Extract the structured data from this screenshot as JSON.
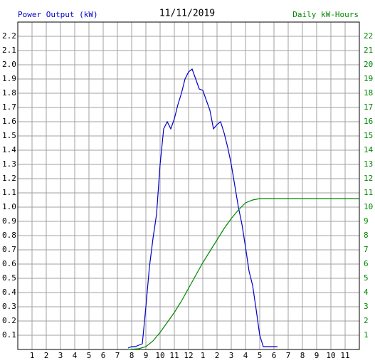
{
  "chart_data": {
    "type": "line",
    "title": "11/11/2019",
    "ylabel": "Power Output (kW)",
    "y2label": "Daily kW-Hours",
    "grid": true,
    "xlim": [
      0,
      24
    ],
    "xticks": [
      1,
      2,
      3,
      4,
      5,
      6,
      7,
      8,
      9,
      10,
      11,
      12,
      {
        "value": 13,
        "label": "1"
      },
      {
        "value": 14,
        "label": "2"
      },
      {
        "value": 15,
        "label": "3"
      },
      {
        "value": 16,
        "label": "4"
      },
      {
        "value": 17,
        "label": "5"
      },
      {
        "value": 18,
        "label": "6"
      },
      {
        "value": 19,
        "label": "7"
      },
      {
        "value": 20,
        "label": "8"
      },
      {
        "value": 21,
        "label": "9"
      },
      {
        "value": 22,
        "label": "10"
      },
      {
        "value": 23,
        "label": "11"
      }
    ],
    "ylim": [
      0,
      2.3
    ],
    "yticks": [
      0.1,
      0.2,
      0.3,
      0.4,
      0.5,
      0.6,
      0.7,
      0.8,
      0.9,
      {
        "value": 1,
        "label": "1.0"
      },
      1.1,
      1.2,
      1.3,
      1.4,
      1.5,
      1.6,
      1.7,
      1.8,
      1.9,
      {
        "value": 2,
        "label": "2.0"
      },
      2.1,
      2.2
    ],
    "y2lim": [
      0,
      23
    ],
    "y2ticks": [
      1,
      2,
      3,
      4,
      5,
      6,
      7,
      8,
      9,
      10,
      11,
      12,
      13,
      14,
      15,
      16,
      17,
      18,
      19,
      20,
      21,
      22
    ],
    "series": [
      {
        "name": "Power Output (kW)",
        "color": "#0000cc",
        "x": [
          7.75,
          8,
          8.25,
          8.5,
          8.75,
          9,
          9.25,
          9.5,
          9.75,
          10,
          10.25,
          10.5,
          10.75,
          11,
          11.25,
          11.5,
          11.75,
          12,
          12.25,
          12.5,
          12.75,
          13,
          13.25,
          13.5,
          13.75,
          14,
          14.25,
          14.5,
          14.75,
          15,
          15.25,
          15.5,
          15.75,
          16,
          16.25,
          16.5,
          16.75,
          17,
          17.25,
          17.5,
          17.75,
          18,
          18.25
        ],
        "values": [
          0.01,
          0.02,
          0.02,
          0.03,
          0.04,
          0.3,
          0.58,
          0.78,
          0.95,
          1.3,
          1.55,
          1.6,
          1.55,
          1.62,
          1.72,
          1.8,
          1.9,
          1.95,
          1.97,
          1.9,
          1.83,
          1.82,
          1.75,
          1.68,
          1.55,
          1.58,
          1.6,
          1.52,
          1.42,
          1.3,
          1.15,
          1.0,
          0.88,
          0.72,
          0.55,
          0.45,
          0.28,
          0.1,
          0.02,
          0.02,
          0.02,
          0.02,
          0.02
        ]
      },
      {
        "name": "Daily kW-Hours",
        "color": "#008800",
        "axis": "y2",
        "x": [
          7.75,
          8.5,
          9,
          9.5,
          10,
          10.5,
          11,
          11.5,
          12,
          12.5,
          13,
          13.5,
          14,
          14.5,
          15,
          15.5,
          16,
          16.5,
          17,
          24
        ],
        "values": [
          0,
          0.05,
          0.2,
          0.6,
          1.2,
          1.9,
          2.6,
          3.4,
          4.3,
          5.2,
          6.1,
          6.9,
          7.7,
          8.5,
          9.2,
          9.8,
          10.3,
          10.5,
          10.6,
          10.6
        ]
      }
    ]
  }
}
